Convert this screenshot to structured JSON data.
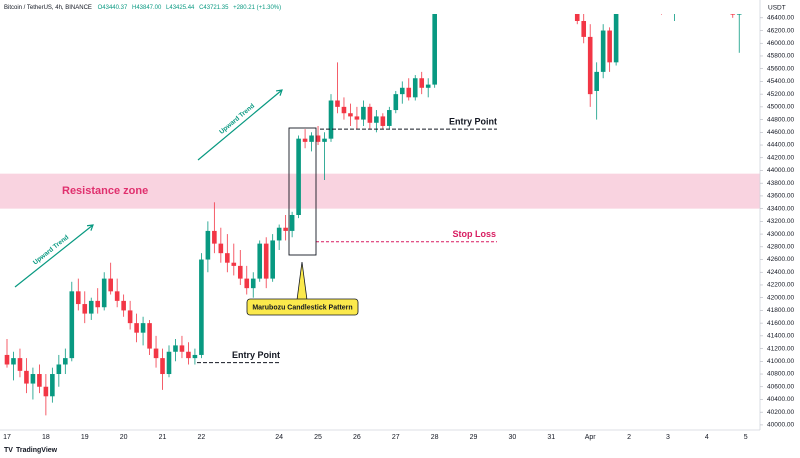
{
  "chart_data": {
    "type": "candlestick",
    "title": "Bitcoin / TetherUS, 4h, BINANCE",
    "ohlc_labels": [
      "O43440.37",
      "H43847.00",
      "L43425.44",
      "C43721.35",
      "+280.21 (+1.30%)"
    ],
    "y_unit_label": "USDT",
    "footer": "TradingView",
    "up_color": "#089981",
    "down_color": "#f23645",
    "ylim": [
      39920,
      46680
    ],
    "yticks": [
      {
        "value": 40000,
        "label": "40000.00"
      },
      {
        "value": 40200,
        "label": "40200.00"
      },
      {
        "value": 40400,
        "label": "40400.00"
      },
      {
        "value": 40600,
        "label": "40600.00"
      },
      {
        "value": 40800,
        "label": "40800.00"
      },
      {
        "value": 41000,
        "label": "41000.00"
      },
      {
        "value": 41200,
        "label": "41200.00"
      },
      {
        "value": 41400,
        "label": "41400.00"
      },
      {
        "value": 41600,
        "label": "41600.00"
      },
      {
        "value": 41800,
        "label": "41800.00"
      },
      {
        "value": 42000,
        "label": "42000.00"
      },
      {
        "value": 42200,
        "label": "42200.00"
      },
      {
        "value": 42400,
        "label": "42400.00"
      },
      {
        "value": 42600,
        "label": "42600.00"
      },
      {
        "value": 42800,
        "label": "42800.00"
      },
      {
        "value": 43000,
        "label": "43000.00"
      },
      {
        "value": 43200,
        "label": "43200.00"
      },
      {
        "value": 43400,
        "label": "43400.00"
      },
      {
        "value": 43600,
        "label": "43600.00"
      },
      {
        "value": 43800,
        "label": "43800.00"
      },
      {
        "value": 44000,
        "label": "44000.00"
      },
      {
        "value": 44200,
        "label": "44200.00"
      },
      {
        "value": 44400,
        "label": "44400.00"
      },
      {
        "value": 44600,
        "label": "44600.00"
      },
      {
        "value": 44800,
        "label": "44800.00"
      },
      {
        "value": 45000,
        "label": "45000.00"
      },
      {
        "value": 45200,
        "label": "45200.00"
      },
      {
        "value": 45400,
        "label": "45400.00"
      },
      {
        "value": 45600,
        "label": "45600.00"
      },
      {
        "value": 45800,
        "label": "45800.00"
      },
      {
        "value": 46000,
        "label": "46000.00"
      },
      {
        "value": 46200,
        "label": "46200.00"
      },
      {
        "value": 46400,
        "label": "46400.00"
      }
    ],
    "categories": [
      "17",
      null,
      null,
      null,
      null,
      null,
      "18",
      null,
      null,
      null,
      null,
      null,
      "19",
      null,
      null,
      null,
      null,
      null,
      "20",
      null,
      null,
      null,
      null,
      null,
      "21",
      null,
      null,
      null,
      null,
      null,
      "22",
      null,
      null,
      null,
      null,
      null,
      null,
      null,
      null,
      null,
      null,
      null,
      "24",
      null,
      null,
      null,
      null,
      null,
      "25",
      null,
      null,
      null,
      null,
      null,
      "26",
      null,
      null,
      null,
      null,
      null,
      "27",
      null,
      null,
      null,
      null,
      null,
      "28",
      null,
      null,
      null,
      null,
      null,
      "29",
      null,
      null,
      null,
      null,
      null,
      "30",
      null,
      null,
      null,
      null,
      null,
      "31",
      null,
      null,
      null,
      null,
      null,
      "Apr",
      null,
      null,
      null,
      null,
      null,
      "2",
      null,
      null,
      null,
      null,
      null,
      "3",
      null,
      null,
      null,
      null,
      null,
      "4",
      null,
      null,
      null,
      null,
      null,
      "5",
      null
    ],
    "open": [
      41100,
      40950,
      41050,
      40850,
      40650,
      40800,
      40600,
      40450,
      40800,
      40950,
      41050,
      42100,
      41900,
      41750,
      41950,
      41850,
      42300,
      42100,
      41950,
      41800,
      41600,
      41450,
      41600,
      41200,
      41050,
      40800,
      41150,
      41250,
      41150,
      41050,
      41100,
      42600,
      43050,
      42850,
      42700,
      42550,
      42500,
      42300,
      42150,
      42300,
      42850,
      42300,
      42900,
      43100,
      43050,
      43300,
      44500,
      44450,
      44550,
      44450,
      44500,
      45100,
      45000,
      44900,
      44850,
      44800,
      45000,
      44750,
      44850,
      44700,
      44950,
      45200,
      45300,
      45150,
      45450,
      45300,
      45350,
      null,
      null,
      null,
      null,
      null,
      null,
      null,
      null,
      null,
      null,
      null,
      null,
      null,
      null,
      null,
      null,
      null,
      null,
      null,
      null,
      null,
      46800,
      46350,
      46100,
      45250,
      45550,
      46200,
      45700,
      null,
      null,
      null,
      null,
      null,
      null,
      46700,
      null,
      46650,
      null,
      null,
      null,
      null,
      null,
      null,
      null,
      46800,
      46650,
      46450,
      null,
      null
    ],
    "high": [
      41350,
      41150,
      41200,
      41050,
      40900,
      40950,
      40800,
      40900,
      41100,
      41200,
      42250,
      42300,
      42100,
      42000,
      42150,
      42400,
      42550,
      42300,
      42050,
      41950,
      41750,
      41700,
      41650,
      41400,
      41200,
      41250,
      41350,
      41400,
      41300,
      41200,
      42700,
      43200,
      43500,
      43100,
      43000,
      42850,
      42750,
      42500,
      42400,
      42900,
      42950,
      43000,
      43150,
      43300,
      43350,
      44550,
      44650,
      44600,
      44700,
      44600,
      45200,
      45700,
      45150,
      45050,
      45000,
      45100,
      45050,
      44950,
      44900,
      45000,
      45250,
      45400,
      45450,
      45500,
      45550,
      45450,
      46800,
      null,
      null,
      null,
      null,
      null,
      null,
      null,
      null,
      null,
      null,
      null,
      null,
      null,
      null,
      null,
      null,
      null,
      null,
      null,
      null,
      null,
      46900,
      46500,
      46300,
      45700,
      46300,
      46250,
      46800,
      null,
      null,
      null,
      null,
      null,
      null,
      46800,
      null,
      46800,
      null,
      null,
      null,
      null,
      null,
      null,
      null,
      46850,
      46750,
      46800,
      null,
      null
    ],
    "low": [
      40900,
      40700,
      40750,
      40500,
      40400,
      40500,
      40150,
      40350,
      40600,
      40800,
      41000,
      41800,
      41600,
      41650,
      41750,
      41800,
      42050,
      41850,
      41700,
      41500,
      41300,
      41250,
      41100,
      40900,
      40550,
      40750,
      41000,
      41050,
      40950,
      40950,
      41050,
      42400,
      42700,
      42550,
      42400,
      42350,
      42200,
      42050,
      42000,
      42250,
      42150,
      42250,
      42750,
      42900,
      42950,
      43250,
      44350,
      44300,
      44400,
      43850,
      44450,
      44900,
      44800,
      44700,
      44650,
      44700,
      44650,
      44600,
      44650,
      44650,
      44900,
      45050,
      45100,
      45100,
      45200,
      45150,
      45300,
      null,
      null,
      null,
      null,
      null,
      null,
      null,
      null,
      null,
      null,
      null,
      null,
      null,
      null,
      null,
      null,
      null,
      null,
      null,
      null,
      null,
      46300,
      46000,
      45000,
      44800,
      45450,
      45550,
      45650,
      null,
      null,
      null,
      null,
      null,
      null,
      46450,
      null,
      46350,
      null,
      null,
      null,
      null,
      null,
      null,
      null,
      46550,
      46400,
      45850,
      null,
      null
    ],
    "close": [
      40950,
      41050,
      40850,
      40650,
      40800,
      40600,
      40450,
      40800,
      40950,
      41050,
      42100,
      41900,
      41750,
      41950,
      41850,
      42300,
      42100,
      41950,
      41800,
      41600,
      41450,
      41600,
      41200,
      41050,
      40800,
      41150,
      41250,
      41150,
      41050,
      41100,
      42600,
      43050,
      42850,
      42700,
      42550,
      42500,
      42300,
      42150,
      42300,
      42850,
      42300,
      42900,
      43100,
      43050,
      43300,
      44500,
      44450,
      44550,
      44450,
      44500,
      45100,
      45000,
      44900,
      44850,
      44800,
      45000,
      44750,
      44850,
      44700,
      44950,
      45200,
      45300,
      45150,
      45450,
      45300,
      45350,
      46750,
      null,
      null,
      null,
      null,
      null,
      null,
      null,
      null,
      null,
      null,
      null,
      null,
      null,
      null,
      null,
      null,
      null,
      null,
      null,
      null,
      null,
      46350,
      46100,
      45200,
      45550,
      46200,
      45700,
      46750,
      null,
      null,
      null,
      null,
      null,
      null,
      46600,
      null,
      46750,
      null,
      null,
      null,
      null,
      null,
      null,
      null,
      46650,
      46450,
      46750,
      null,
      null
    ],
    "resistance_zone": {
      "label": "Resistance zone",
      "range": [
        43400,
        43950
      ]
    },
    "levels": [
      {
        "label": "Entry Point",
        "value": 44650
      },
      {
        "label": "Entry Point",
        "value": 40980
      },
      {
        "label": "Stop Loss",
        "value": 42880
      }
    ],
    "pattern_label": "Marubozu Candlestick Pattern",
    "trend_labels": [
      "Upward Trend",
      "Upward Trend"
    ]
  }
}
